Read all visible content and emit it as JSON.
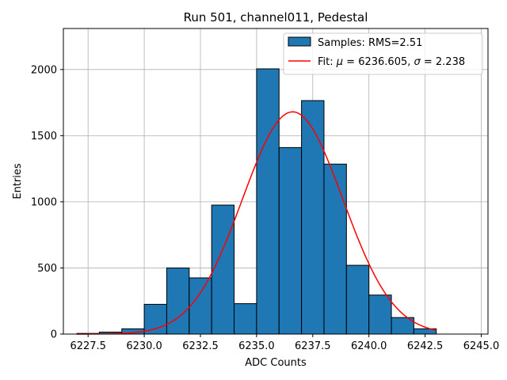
{
  "chart_data": {
    "type": "bar",
    "title": "Run 501, channel011, Pedestal",
    "xlabel": "ADC Counts",
    "ylabel": "Entries",
    "xlim": [
      6226.4,
      6245.3
    ],
    "ylim": [
      0,
      2310
    ],
    "x_ticks": [
      6227.5,
      6230.0,
      6232.5,
      6235.0,
      6237.5,
      6240.0,
      6242.5,
      6245.0
    ],
    "x_tick_labels": [
      "6227.5",
      "6230.0",
      "6232.5",
      "6235.0",
      "6237.5",
      "6240.0",
      "6242.5",
      "6245.0"
    ],
    "y_ticks": [
      0,
      500,
      1000,
      1500,
      2000
    ],
    "y_tick_labels": [
      "0",
      "500",
      "1000",
      "1500",
      "2000"
    ],
    "grid": true,
    "legend_position": "top-right",
    "series": [
      {
        "name": "Samples: RMS=2.51",
        "kind": "histogram",
        "color": "#1f77b4",
        "edge_color": "#000000",
        "bin_edges": [
          6227,
          6228,
          6229,
          6230,
          6231,
          6232,
          6233,
          6234,
          6235,
          6236,
          6237,
          6238,
          6239,
          6240,
          6241,
          6242,
          6243
        ],
        "values": [
          5,
          15,
          40,
          225,
          500,
          425,
          975,
          230,
          2005,
          1410,
          1765,
          1285,
          520,
          295,
          125,
          40
        ]
      },
      {
        "name": "Fit: μ = 6236.605, σ = 2.238",
        "kind": "gaussian",
        "color": "#ff0000",
        "mu": 6236.605,
        "sigma": 2.238,
        "amplitude": 1680,
        "x_range": [
          6227,
          6243
        ]
      }
    ]
  }
}
